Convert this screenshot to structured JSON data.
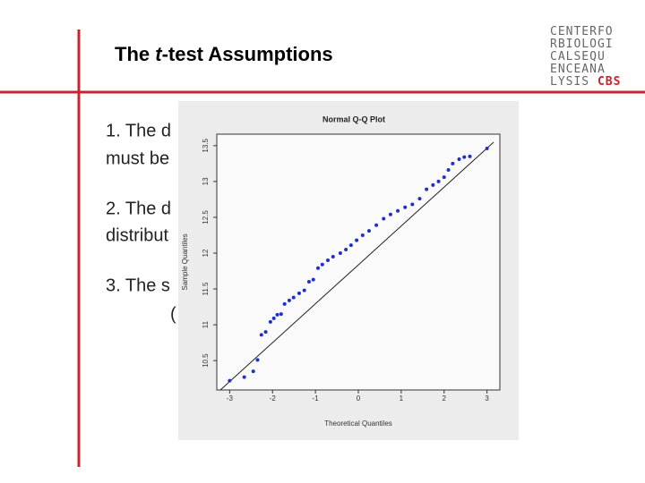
{
  "slide": {
    "title": {
      "before": "The ",
      "italic": "t",
      "after": "-test Assumptions"
    },
    "logo": {
      "lines": [
        "CENTERFO",
        "RBIOLOGI",
        "CALSEQU",
        "ENCEANA",
        "LYSIS "
      ],
      "accent": "CBS"
    },
    "body": [
      "1. The d",
      "must be",
      "2. The d",
      "distribut",
      "3. The s",
      "("
    ],
    "plot": {
      "type": "scatter",
      "title": "Normal Q-Q Plot",
      "x_label": "Theoretical Quantiles",
      "y_label": "Sample Quantiles",
      "color": "#1f2fc8",
      "xlim": [
        -3.3,
        3.3
      ],
      "ylim": [
        10.09,
        13.66
      ],
      "xticks": [
        -3,
        -2,
        -1,
        0,
        1,
        2,
        3
      ],
      "yticks": [
        10.5,
        11,
        11.5,
        12,
        12.5,
        13,
        13.5
      ],
      "x": [
        -3.0,
        -2.66,
        -2.45,
        -2.35,
        -2.26,
        -2.16,
        -2.05,
        -1.97,
        -1.89,
        -1.8,
        -1.72,
        -1.61,
        -1.51,
        -1.38,
        -1.26,
        -1.15,
        -1.05,
        -0.94,
        -0.84,
        -0.71,
        -0.59,
        -0.42,
        -0.29,
        -0.17,
        -0.04,
        0.1,
        0.25,
        0.42,
        0.59,
        0.75,
        0.92,
        1.09,
        1.26,
        1.43,
        1.59,
        1.74,
        1.87,
        2.0,
        2.1,
        2.2,
        2.35,
        2.47,
        2.6,
        3.0
      ],
      "y": [
        10.22,
        10.27,
        10.35,
        10.51,
        10.86,
        10.9,
        11.04,
        11.09,
        11.14,
        11.15,
        11.29,
        11.34,
        11.38,
        11.44,
        11.48,
        11.6,
        11.63,
        11.79,
        11.84,
        11.9,
        11.95,
        12.0,
        12.05,
        12.11,
        12.18,
        12.25,
        12.31,
        12.39,
        12.48,
        12.54,
        12.59,
        12.64,
        12.68,
        12.76,
        12.89,
        12.95,
        13.0,
        13.06,
        13.16,
        13.25,
        13.31,
        13.34,
        13.35,
        13.46
      ]
    }
  }
}
